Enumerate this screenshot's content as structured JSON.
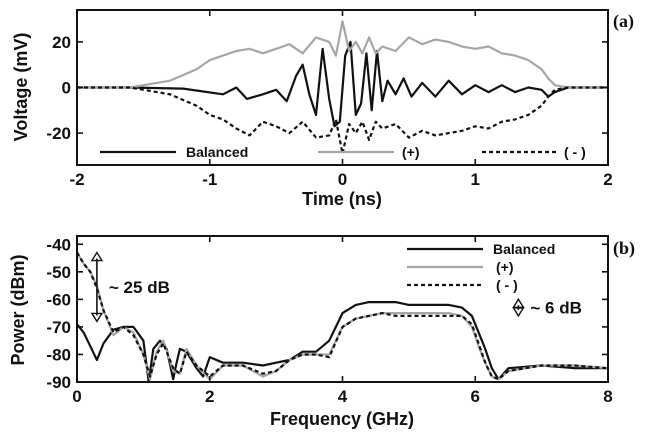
{
  "chart_data": [
    {
      "panel": "(a)",
      "type": "line",
      "xlabel": "Time (ns)",
      "ylabel": "Voltage (mV)",
      "xlim": [
        -2,
        2
      ],
      "ylim": [
        -34,
        34
      ],
      "xticks": [
        -2,
        -1,
        0,
        1,
        2
      ],
      "yticks": [
        -20,
        0,
        20
      ],
      "grid": false,
      "legend_placement": "bottom, single row",
      "series": [
        {
          "name": "Balanced",
          "color": "#111111",
          "dash": "solid",
          "x": [
            -2.0,
            -1.6,
            -1.2,
            -0.9,
            -0.8,
            -0.72,
            -0.6,
            -0.5,
            -0.42,
            -0.35,
            -0.3,
            -0.25,
            -0.2,
            -0.15,
            -0.1,
            -0.06,
            -0.02,
            0.02,
            0.06,
            0.1,
            0.14,
            0.18,
            0.22,
            0.26,
            0.3,
            0.34,
            0.4,
            0.46,
            0.52,
            0.6,
            0.7,
            0.8,
            0.9,
            1.0,
            1.1,
            1.2,
            1.3,
            1.4,
            1.5,
            1.55,
            1.6,
            1.7,
            2.0
          ],
          "y": [
            0,
            0,
            -0.5,
            -3,
            0,
            -5,
            -3,
            -1,
            -6,
            5,
            10,
            -3,
            -12,
            17,
            -5,
            -17,
            -15,
            14,
            20,
            -12,
            -7,
            15,
            -10,
            16,
            -6,
            3,
            -3,
            4,
            -4,
            2,
            -4,
            3,
            -3,
            1,
            -2,
            1,
            -2,
            0,
            -1,
            -4,
            -2,
            0,
            0
          ]
        },
        {
          "name": "(+)",
          "color": "#a6a6a6",
          "dash": "solid",
          "x": [
            -2.0,
            -1.6,
            -1.3,
            -1.1,
            -1.0,
            -0.9,
            -0.8,
            -0.7,
            -0.6,
            -0.5,
            -0.4,
            -0.3,
            -0.2,
            -0.1,
            -0.05,
            0.0,
            0.05,
            0.1,
            0.15,
            0.2,
            0.25,
            0.3,
            0.4,
            0.5,
            0.6,
            0.7,
            0.8,
            0.9,
            1.0,
            1.1,
            1.2,
            1.3,
            1.4,
            1.5,
            1.55,
            1.6,
            1.7,
            2.0
          ],
          "y": [
            0,
            0,
            3,
            8,
            12,
            14,
            16,
            17,
            15,
            17,
            19,
            15,
            22,
            20,
            14,
            29,
            16,
            20,
            15,
            22,
            15,
            18,
            16,
            22,
            19,
            21,
            20,
            18,
            17,
            18,
            15,
            14,
            12,
            8,
            4,
            1,
            0,
            0
          ]
        },
        {
          "name": "( - )",
          "color": "#111111",
          "dash": "dashed",
          "x": [
            -2.0,
            -1.6,
            -1.3,
            -1.1,
            -1.0,
            -0.9,
            -0.8,
            -0.7,
            -0.6,
            -0.5,
            -0.4,
            -0.3,
            -0.2,
            -0.1,
            -0.05,
            0.0,
            0.05,
            0.1,
            0.15,
            0.2,
            0.25,
            0.3,
            0.4,
            0.5,
            0.6,
            0.7,
            0.8,
            0.9,
            1.0,
            1.1,
            1.2,
            1.3,
            1.4,
            1.5,
            1.55,
            1.6,
            1.7,
            2.0
          ],
          "y": [
            0,
            0,
            -3,
            -8,
            -12,
            -14,
            -18,
            -21,
            -15,
            -17,
            -20,
            -15,
            -22,
            -21,
            -14,
            -29,
            -16,
            -20,
            -15,
            -23,
            -15,
            -18,
            -16,
            -22,
            -19,
            -21,
            -20,
            -19,
            -17,
            -18,
            -15,
            -14,
            -12,
            -8,
            -4,
            -1,
            0,
            0
          ]
        }
      ]
    },
    {
      "panel": "(b)",
      "type": "line",
      "xlabel": "Frequency (GHz)",
      "ylabel": "Power (dBm)",
      "xlim": [
        0,
        8
      ],
      "ylim": [
        -90,
        -37
      ],
      "xticks": [
        0,
        2,
        4,
        6,
        8
      ],
      "yticks": [
        -90,
        -80,
        -70,
        -60,
        -50,
        -40
      ],
      "grid": false,
      "legend_placement": "top-right",
      "series": [
        {
          "name": "Balanced",
          "color": "#111111",
          "dash": "solid",
          "x": [
            0.0,
            0.1,
            0.2,
            0.3,
            0.4,
            0.55,
            0.7,
            0.85,
            1.0,
            1.08,
            1.15,
            1.25,
            1.35,
            1.45,
            1.5,
            1.55,
            1.65,
            1.8,
            1.9,
            2.0,
            2.2,
            2.5,
            2.8,
            3.0,
            3.2,
            3.4,
            3.6,
            3.8,
            4.0,
            4.2,
            4.4,
            4.6,
            4.8,
            5.0,
            5.2,
            5.4,
            5.6,
            5.8,
            5.95,
            6.05,
            6.15,
            6.25,
            6.35,
            6.5,
            7.0,
            7.5,
            8.0
          ],
          "y": [
            -69,
            -72,
            -77,
            -82,
            -76,
            -71,
            -70,
            -70,
            -75,
            -90,
            -78,
            -75,
            -78,
            -89,
            -83,
            -78,
            -79,
            -85,
            -88,
            -81,
            -83,
            -83,
            -84,
            -83,
            -82,
            -79,
            -79,
            -75,
            -65,
            -62,
            -61,
            -61,
            -61,
            -62,
            -62,
            -62,
            -62,
            -63,
            -66,
            -72,
            -78,
            -85,
            -89,
            -85,
            -84,
            -85,
            -85
          ]
        },
        {
          "name": "(+)",
          "color": "#a6a6a6",
          "dash": "solid",
          "x": [
            0.0,
            0.1,
            0.2,
            0.3,
            0.4,
            0.55,
            0.7,
            0.85,
            1.0,
            1.1,
            1.2,
            1.3,
            1.45,
            1.55,
            1.65,
            1.8,
            2.0,
            2.2,
            2.5,
            2.8,
            3.0,
            3.2,
            3.4,
            3.6,
            3.8,
            4.0,
            4.2,
            4.4,
            4.6,
            4.8,
            5.0,
            5.2,
            5.4,
            5.6,
            5.8,
            5.95,
            6.05,
            6.15,
            6.25,
            6.35,
            6.5,
            7.0,
            7.5,
            8.0
          ],
          "y": [
            -43,
            -47,
            -50,
            -55,
            -64,
            -73,
            -70,
            -72,
            -80,
            -89,
            -79,
            -75,
            -86,
            -87,
            -78,
            -84,
            -89,
            -84,
            -84,
            -88,
            -86,
            -82,
            -80,
            -80,
            -80,
            -70,
            -67,
            -66,
            -65,
            -65,
            -65,
            -65,
            -65,
            -65,
            -66,
            -70,
            -77,
            -83,
            -88,
            -89,
            -86,
            -84,
            -84,
            -85
          ]
        },
        {
          "name": "( - )",
          "color": "#111111",
          "dash": "dashed",
          "x": [
            0.0,
            0.1,
            0.2,
            0.3,
            0.4,
            0.55,
            0.7,
            0.85,
            1.0,
            1.1,
            1.2,
            1.3,
            1.45,
            1.55,
            1.65,
            1.8,
            2.0,
            2.2,
            2.5,
            2.8,
            3.0,
            3.2,
            3.4,
            3.6,
            3.8,
            4.0,
            4.2,
            4.4,
            4.6,
            4.8,
            5.0,
            5.2,
            5.4,
            5.6,
            5.8,
            5.95,
            6.05,
            6.15,
            6.25,
            6.35,
            6.5,
            7.0,
            7.5,
            8.0
          ],
          "y": [
            -43,
            -47,
            -50,
            -56,
            -64,
            -72,
            -70,
            -73,
            -80,
            -88,
            -80,
            -76,
            -85,
            -87,
            -79,
            -84,
            -88,
            -84,
            -84,
            -87,
            -86,
            -82,
            -80,
            -80,
            -81,
            -70,
            -67,
            -66,
            -65,
            -66,
            -66,
            -66,
            -66,
            -66,
            -66,
            -69,
            -76,
            -83,
            -88,
            -89,
            -86,
            -84,
            -84,
            -85
          ]
        }
      ],
      "annotations": [
        {
          "text": "~ 25 dB",
          "x": 0.3,
          "y_from": -43,
          "y_to": -68
        },
        {
          "text": "~ 6 dB",
          "x": 6.65,
          "y_from": -60,
          "y_to": -66
        }
      ]
    }
  ]
}
